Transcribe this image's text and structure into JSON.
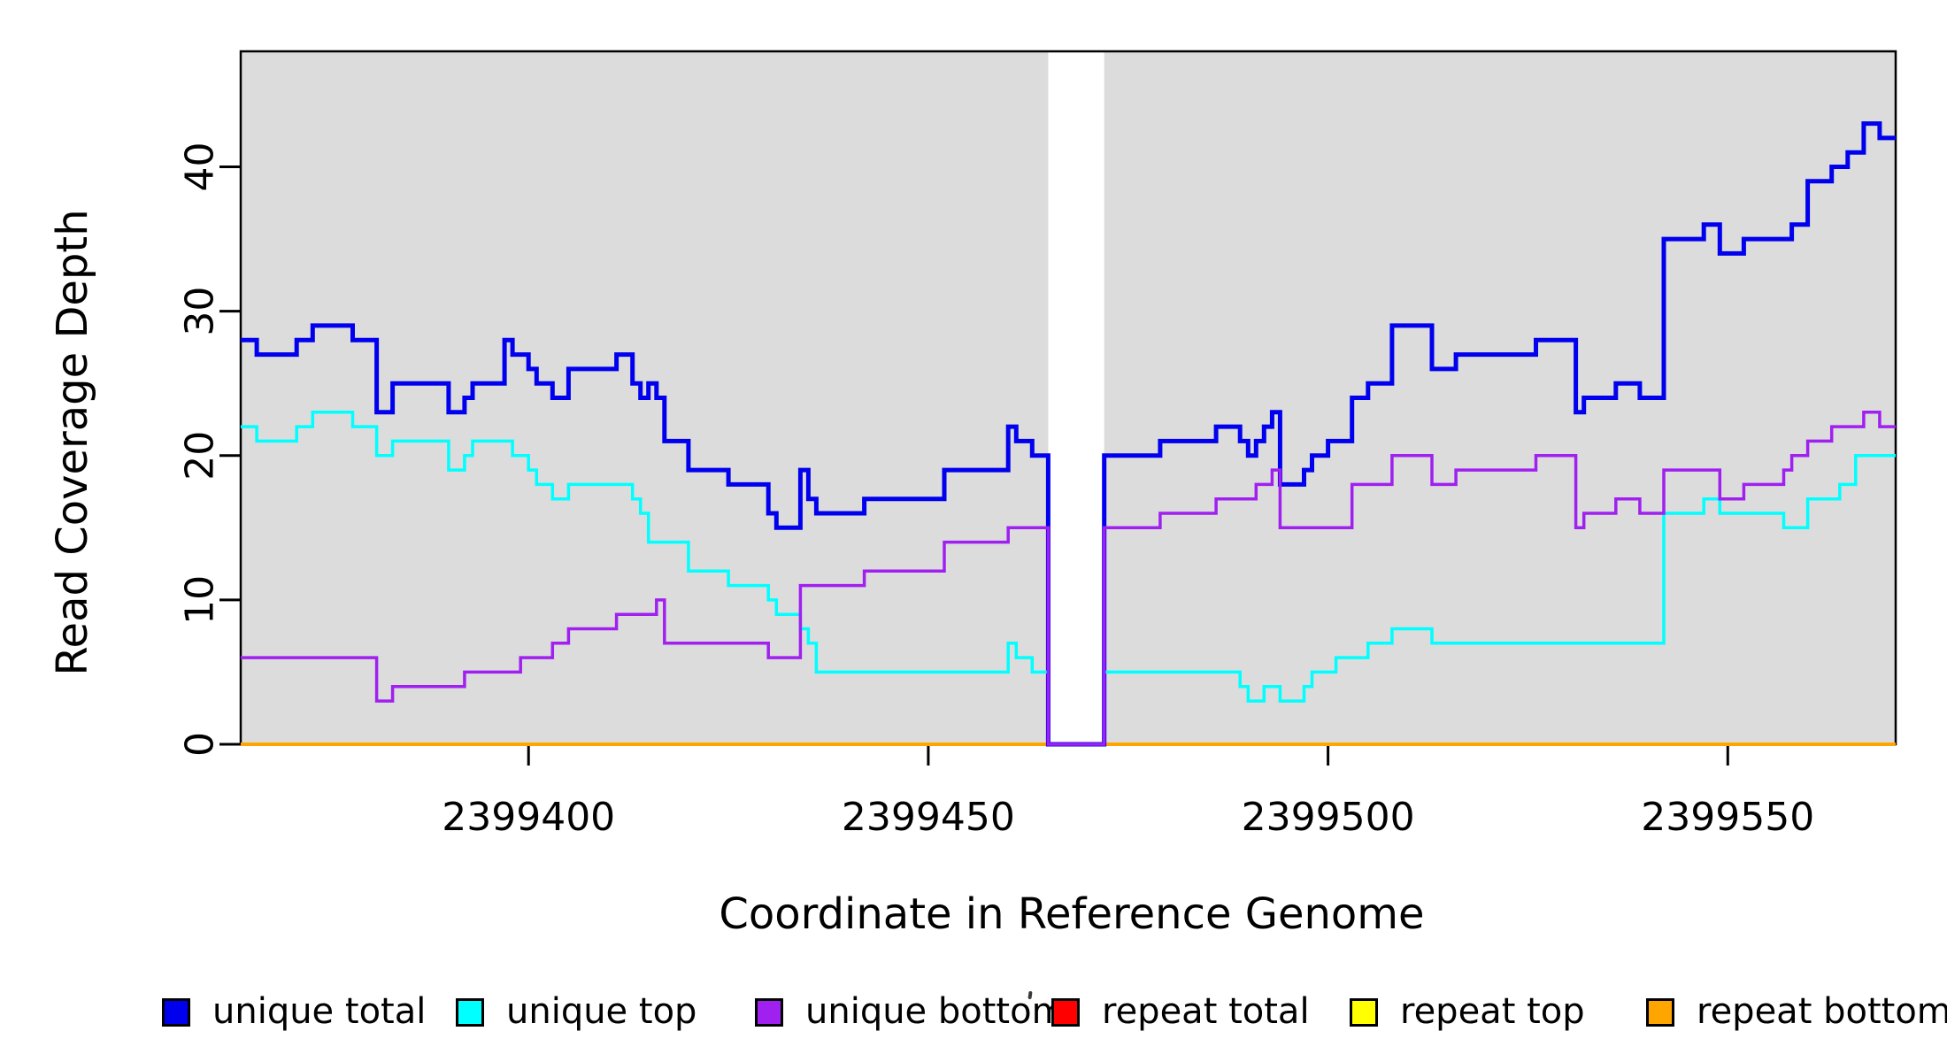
{
  "y_axis": {
    "label": "Read Coverage Depth",
    "ticks": [
      0,
      10,
      20,
      30,
      40
    ]
  },
  "x_axis": {
    "label": "Coordinate in Reference Genome",
    "ticks": [
      2399400,
      2399450,
      2399500,
      2399550
    ]
  },
  "legend": [
    {
      "label": "unique total",
      "color": "#0000EE"
    },
    {
      "label": "unique top",
      "color": "#00FFFF"
    },
    {
      "label": "unique bottom",
      "color": "#A020F0"
    },
    {
      "label": "repeat total",
      "color": "#FF0000"
    },
    {
      "label": "repeat top",
      "color": "#FFFF00"
    },
    {
      "label": "repeat bottom",
      "color": "#FFA500"
    }
  ],
  "chart_data": {
    "type": "line",
    "subtype": "step-after-coverage",
    "title": "",
    "xlabel": "Coordinate in Reference Genome",
    "ylabel": "Read Coverage Depth",
    "xlim": [
      2399364,
      2399571
    ],
    "ylim": [
      0,
      48
    ],
    "grid": false,
    "plot_background": "#DCDCDC",
    "masked_region": {
      "start": 2399465,
      "end": 2399472,
      "color": "#FFFFFF"
    },
    "series": [
      {
        "name": "repeat total",
        "color": "#FF0000",
        "width": 3,
        "segments": [
          [
            [
              2399364,
              0
            ],
            [
              2399571,
              0
            ]
          ]
        ]
      },
      {
        "name": "repeat top",
        "color": "#FFFF00",
        "width": 3,
        "segments": [
          [
            [
              2399364,
              0
            ],
            [
              2399571,
              0
            ]
          ]
        ]
      },
      {
        "name": "repeat bottom",
        "color": "#FFA500",
        "width": 4,
        "segments": [
          [
            [
              2399364,
              0
            ],
            [
              2399571,
              0
            ]
          ]
        ]
      },
      {
        "name": "unique total",
        "color": "#0000EE",
        "width": 5,
        "segments": [
          [
            [
              2399364,
              28
            ],
            [
              2399366,
              27
            ],
            [
              2399371,
              28
            ],
            [
              2399373,
              29
            ],
            [
              2399378,
              28
            ],
            [
              2399381,
              23
            ],
            [
              2399383,
              25
            ],
            [
              2399390,
              23
            ],
            [
              2399392,
              24
            ],
            [
              2399393,
              25
            ],
            [
              2399397,
              28
            ],
            [
              2399398,
              27
            ],
            [
              2399400,
              26
            ],
            [
              2399401,
              25
            ],
            [
              2399403,
              24
            ],
            [
              2399405,
              26
            ],
            [
              2399411,
              27
            ],
            [
              2399413,
              25
            ],
            [
              2399414,
              24
            ],
            [
              2399415,
              25
            ],
            [
              2399416,
              24
            ],
            [
              2399417,
              21
            ],
            [
              2399420,
              19
            ],
            [
              2399425,
              18
            ],
            [
              2399430,
              16
            ],
            [
              2399431,
              15
            ],
            [
              2399434,
              19
            ],
            [
              2399435,
              17
            ],
            [
              2399436,
              16
            ],
            [
              2399442,
              17
            ],
            [
              2399452,
              19
            ],
            [
              2399460,
              22
            ],
            [
              2399461,
              21
            ],
            [
              2399463,
              20
            ],
            [
              2399465,
              0
            ],
            [
              2399472,
              20
            ],
            [
              2399479,
              21
            ],
            [
              2399486,
              22
            ],
            [
              2399489,
              21
            ],
            [
              2399490,
              20
            ],
            [
              2399491,
              21
            ],
            [
              2399492,
              22
            ],
            [
              2399493,
              23
            ],
            [
              2399494,
              18
            ],
            [
              2399497,
              19
            ],
            [
              2399498,
              20
            ],
            [
              2399500,
              21
            ],
            [
              2399503,
              24
            ],
            [
              2399505,
              25
            ],
            [
              2399508,
              29
            ],
            [
              2399513,
              26
            ],
            [
              2399516,
              27
            ],
            [
              2399526,
              28
            ],
            [
              2399531,
              23
            ],
            [
              2399532,
              24
            ],
            [
              2399536,
              25
            ],
            [
              2399539,
              24
            ],
            [
              2399542,
              35
            ],
            [
              2399547,
              36
            ],
            [
              2399549,
              34
            ],
            [
              2399552,
              35
            ],
            [
              2399558,
              36
            ],
            [
              2399560,
              39
            ],
            [
              2399563,
              40
            ],
            [
              2399565,
              41
            ],
            [
              2399567,
              43
            ],
            [
              2399569,
              42
            ],
            [
              2399571,
              42
            ]
          ]
        ]
      },
      {
        "name": "unique top",
        "color": "#00FFFF",
        "width": 3.5,
        "segments": [
          [
            [
              2399364,
              22
            ],
            [
              2399366,
              21
            ],
            [
              2399371,
              22
            ],
            [
              2399373,
              23
            ],
            [
              2399378,
              22
            ],
            [
              2399381,
              20
            ],
            [
              2399383,
              21
            ],
            [
              2399390,
              19
            ],
            [
              2399392,
              20
            ],
            [
              2399393,
              21
            ],
            [
              2399398,
              20
            ],
            [
              2399400,
              19
            ],
            [
              2399401,
              18
            ],
            [
              2399403,
              17
            ],
            [
              2399405,
              18
            ],
            [
              2399413,
              17
            ],
            [
              2399414,
              16
            ],
            [
              2399415,
              14
            ],
            [
              2399420,
              12
            ],
            [
              2399425,
              11
            ],
            [
              2399430,
              10
            ],
            [
              2399431,
              9
            ],
            [
              2399434,
              8
            ],
            [
              2399435,
              7
            ],
            [
              2399436,
              5
            ],
            [
              2399460,
              7
            ],
            [
              2399461,
              6
            ],
            [
              2399463,
              5
            ],
            [
              2399465,
              5
            ]
          ],
          [
            [
              2399472,
              5
            ],
            [
              2399489,
              4
            ],
            [
              2399490,
              3
            ],
            [
              2399492,
              4
            ],
            [
              2399494,
              3
            ],
            [
              2399497,
              4
            ],
            [
              2399498,
              5
            ],
            [
              2399501,
              6
            ],
            [
              2399505,
              7
            ],
            [
              2399508,
              8
            ],
            [
              2399513,
              7
            ],
            [
              2399542,
              16
            ],
            [
              2399547,
              17
            ],
            [
              2399549,
              16
            ],
            [
              2399557,
              15
            ],
            [
              2399560,
              17
            ],
            [
              2399564,
              18
            ],
            [
              2399566,
              20
            ],
            [
              2399571,
              20
            ]
          ]
        ]
      },
      {
        "name": "unique bottom",
        "color": "#A020F0",
        "width": 3.5,
        "segments": [
          [
            [
              2399364,
              6
            ],
            [
              2399381,
              3
            ],
            [
              2399383,
              4
            ],
            [
              2399392,
              5
            ],
            [
              2399399,
              6
            ],
            [
              2399403,
              7
            ],
            [
              2399405,
              8
            ],
            [
              2399411,
              9
            ],
            [
              2399416,
              10
            ],
            [
              2399417,
              7
            ],
            [
              2399430,
              6
            ],
            [
              2399434,
              11
            ],
            [
              2399442,
              12
            ],
            [
              2399452,
              14
            ],
            [
              2399460,
              15
            ],
            [
              2399465,
              0
            ],
            [
              2399472,
              15
            ],
            [
              2399479,
              16
            ],
            [
              2399486,
              17
            ],
            [
              2399491,
              18
            ],
            [
              2399493,
              19
            ],
            [
              2399494,
              15
            ],
            [
              2399503,
              18
            ],
            [
              2399508,
              20
            ],
            [
              2399513,
              18
            ],
            [
              2399516,
              19
            ],
            [
              2399526,
              20
            ],
            [
              2399531,
              15
            ],
            [
              2399532,
              16
            ],
            [
              2399536,
              17
            ],
            [
              2399539,
              16
            ],
            [
              2399542,
              19
            ],
            [
              2399549,
              17
            ],
            [
              2399552,
              18
            ],
            [
              2399557,
              19
            ],
            [
              2399558,
              20
            ],
            [
              2399560,
              21
            ],
            [
              2399563,
              22
            ],
            [
              2399567,
              23
            ],
            [
              2399569,
              22
            ],
            [
              2399571,
              22
            ]
          ]
        ]
      }
    ]
  }
}
